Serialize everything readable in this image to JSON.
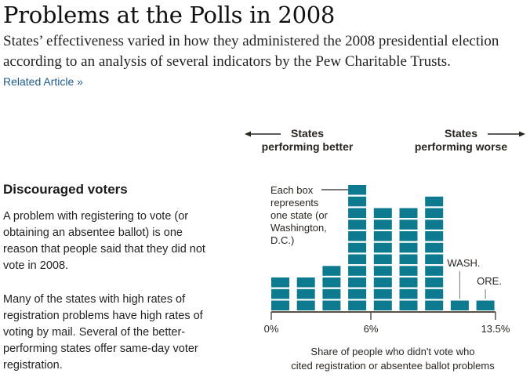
{
  "header": {
    "title": "Problems at the Polls in 2008",
    "subtitle_lines": [
      "States’ effectiveness varied in how they administered the 2008 presidential election",
      "according to an analysis of several indicators by the Pew Charitable Trusts."
    ],
    "related_link": "Related Article »"
  },
  "sidebar": {
    "heading": "Discouraged voters",
    "paragraph1_lines": [
      "A problem with registering to vote (or",
      "obtaining an absentee ballot) is one",
      "reason that people said that they did not",
      "vote in 2008."
    ],
    "paragraph2_lines": [
      "Many of the states with high rates of",
      "registration problems have high rates of",
      "voting by mail. Several of the better-",
      "performing states offer same-day voter",
      "registration."
    ]
  },
  "colors": {
    "box": "#0e7a90",
    "axis": "#5a5048",
    "text": "#2a2520",
    "link": "#1d5b8a"
  },
  "chart_data": {
    "type": "bar",
    "subtype": "unit histogram (each box = one state)",
    "title": "",
    "direction_labels": {
      "left": [
        "States",
        "performing better"
      ],
      "right": [
        "States",
        "performing worse"
      ]
    },
    "annotation_legend": [
      "Each box",
      "represents",
      "one state (or",
      "Washington,",
      "D.C.)"
    ],
    "bins": [
      "bin1",
      "bin2",
      "bin3",
      "bin4",
      "bin5",
      "bin6",
      "bin7",
      "bin8",
      "bin9"
    ],
    "values": [
      3,
      3,
      4,
      11,
      9,
      9,
      10,
      1,
      1
    ],
    "bin_annotations": [
      {
        "bin": 7,
        "label": "WASH."
      },
      {
        "bin": 8,
        "label": "ORE."
      }
    ],
    "x_ticks": [
      {
        "label": "0%",
        "value": 0
      },
      {
        "label": "6%",
        "value": 6
      },
      {
        "label": "13.5%",
        "value": 13.5
      }
    ],
    "xlim": [
      0,
      13.5
    ],
    "xlabel_lines": [
      "Share of people who didn't vote who",
      "cited registration or absentee ballot problems"
    ],
    "ylabel": "",
    "total_units": 51
  }
}
